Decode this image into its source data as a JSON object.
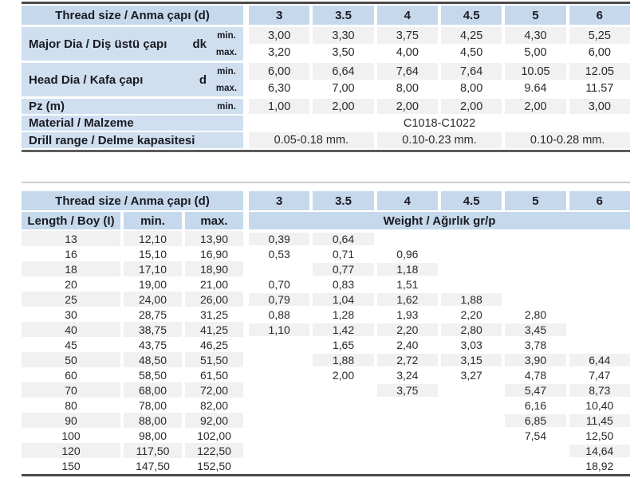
{
  "colors": {
    "header_blue": "#c6d9ec",
    "label_blue": "#cfdff0",
    "row_gray": "#f1f1f1",
    "row_white": "#ffffff",
    "rule_dark": "#4a4a4a",
    "text_dark": "#1a1a22"
  },
  "table1": {
    "header": {
      "label": "Thread size / Anma çapı (d)",
      "columns": [
        "3",
        "3.5",
        "4",
        "4.5",
        "5",
        "6"
      ]
    },
    "blocks": [
      {
        "label": "Major Dia / Diş üstü çapı",
        "symbol": "dk",
        "rows": [
          {
            "qual": "min.",
            "values": [
              "3,00",
              "3,30",
              "3,75",
              "4,25",
              "4,30",
              "5,25"
            ]
          },
          {
            "qual": "max.",
            "values": [
              "3,20",
              "3,50",
              "4,00",
              "4,50",
              "5,00",
              "6,00"
            ]
          }
        ]
      },
      {
        "label": "Head Dia / Kafa çapı",
        "symbol": "d",
        "rows": [
          {
            "qual": "min.",
            "values": [
              "6,00",
              "6,64",
              "7,64",
              "7,64",
              "10.05",
              "12.05"
            ]
          },
          {
            "qual": "max.",
            "values": [
              "6,30",
              "7,00",
              "8,00",
              "8,00",
              "9.64",
              "11.57"
            ]
          }
        ]
      },
      {
        "label": "Pz (m)",
        "symbol": "",
        "rows": [
          {
            "qual": "min.",
            "values": [
              "1,00",
              "2,00",
              "2,00",
              "2,00",
              "2,00",
              "3,00"
            ]
          }
        ]
      }
    ],
    "material": {
      "label": "Material / Malzeme",
      "value": "C1018-C1022"
    },
    "drill": {
      "label": "Drill range / Delme kapasitesi",
      "values": [
        "0.05-0.18 mm.",
        "0.10-0.23 mm.",
        "0.10-0.28 mm."
      ]
    }
  },
  "table2": {
    "header": {
      "label": "Thread size / Anma çapı (d)",
      "columns": [
        "3",
        "3.5",
        "4",
        "4.5",
        "5",
        "6"
      ]
    },
    "subheader": {
      "length": "Length / Boy (I)",
      "min": "min.",
      "max": "max.",
      "weight": "Weight / Ağırlık gr/p"
    },
    "rows": [
      {
        "length": "13",
        "min": "12,10",
        "max": "13,90",
        "weights": [
          "0,39",
          "0,64",
          "",
          "",
          "",
          ""
        ]
      },
      {
        "length": "16",
        "min": "15,10",
        "max": "16,90",
        "weights": [
          "0,53",
          "0,71",
          "0,96",
          "",
          "",
          ""
        ]
      },
      {
        "length": "18",
        "min": "17,10",
        "max": "18,90",
        "weights": [
          "",
          "0,77",
          "1,18",
          "",
          "",
          ""
        ]
      },
      {
        "length": "20",
        "min": "19,00",
        "max": "21,00",
        "weights": [
          "0,70",
          "0,83",
          "1,51",
          "",
          "",
          ""
        ]
      },
      {
        "length": "25",
        "min": "24,00",
        "max": "26,00",
        "weights": [
          "0,79",
          "1,04",
          "1,62",
          "1,88",
          "",
          ""
        ]
      },
      {
        "length": "30",
        "min": "28,75",
        "max": "31,25",
        "weights": [
          "0,88",
          "1,28",
          "1,93",
          "2,20",
          "2,80",
          ""
        ]
      },
      {
        "length": "40",
        "min": "38,75",
        "max": "41,25",
        "weights": [
          "1,10",
          "1,42",
          "2,20",
          "2,80",
          "3,45",
          ""
        ]
      },
      {
        "length": "45",
        "min": "43,75",
        "max": "46,25",
        "weights": [
          "",
          "1,65",
          "2,40",
          "3,03",
          "3,78",
          ""
        ]
      },
      {
        "length": "50",
        "min": "48,50",
        "max": "51,50",
        "weights": [
          "",
          "1,88",
          "2,72",
          "3,15",
          "3,90",
          "6,44"
        ]
      },
      {
        "length": "60",
        "min": "58,50",
        "max": "61,50",
        "weights": [
          "",
          "2,00",
          "3,24",
          "3,27",
          "4,78",
          "7,47"
        ]
      },
      {
        "length": "70",
        "min": "68,00",
        "max": "72,00",
        "weights": [
          "",
          "",
          "3,75",
          "",
          "5,47",
          "8,73"
        ]
      },
      {
        "length": "80",
        "min": "78,00",
        "max": "82,00",
        "weights": [
          "",
          "",
          "",
          "",
          "6,16",
          "10,40"
        ]
      },
      {
        "length": "90",
        "min": "88,00",
        "max": "92,00",
        "weights": [
          "",
          "",
          "",
          "",
          "6,85",
          "11,45"
        ]
      },
      {
        "length": "100",
        "min": "98,00",
        "max": "102,00",
        "weights": [
          "",
          "",
          "",
          "",
          "7,54",
          "12,50"
        ]
      },
      {
        "length": "120",
        "min": "117,50",
        "max": "122,50",
        "weights": [
          "",
          "",
          "",
          "",
          "",
          "14,64"
        ]
      },
      {
        "length": "150",
        "min": "147,50",
        "max": "152,50",
        "weights": [
          "",
          "",
          "",
          "",
          "",
          "18,92"
        ]
      }
    ]
  }
}
